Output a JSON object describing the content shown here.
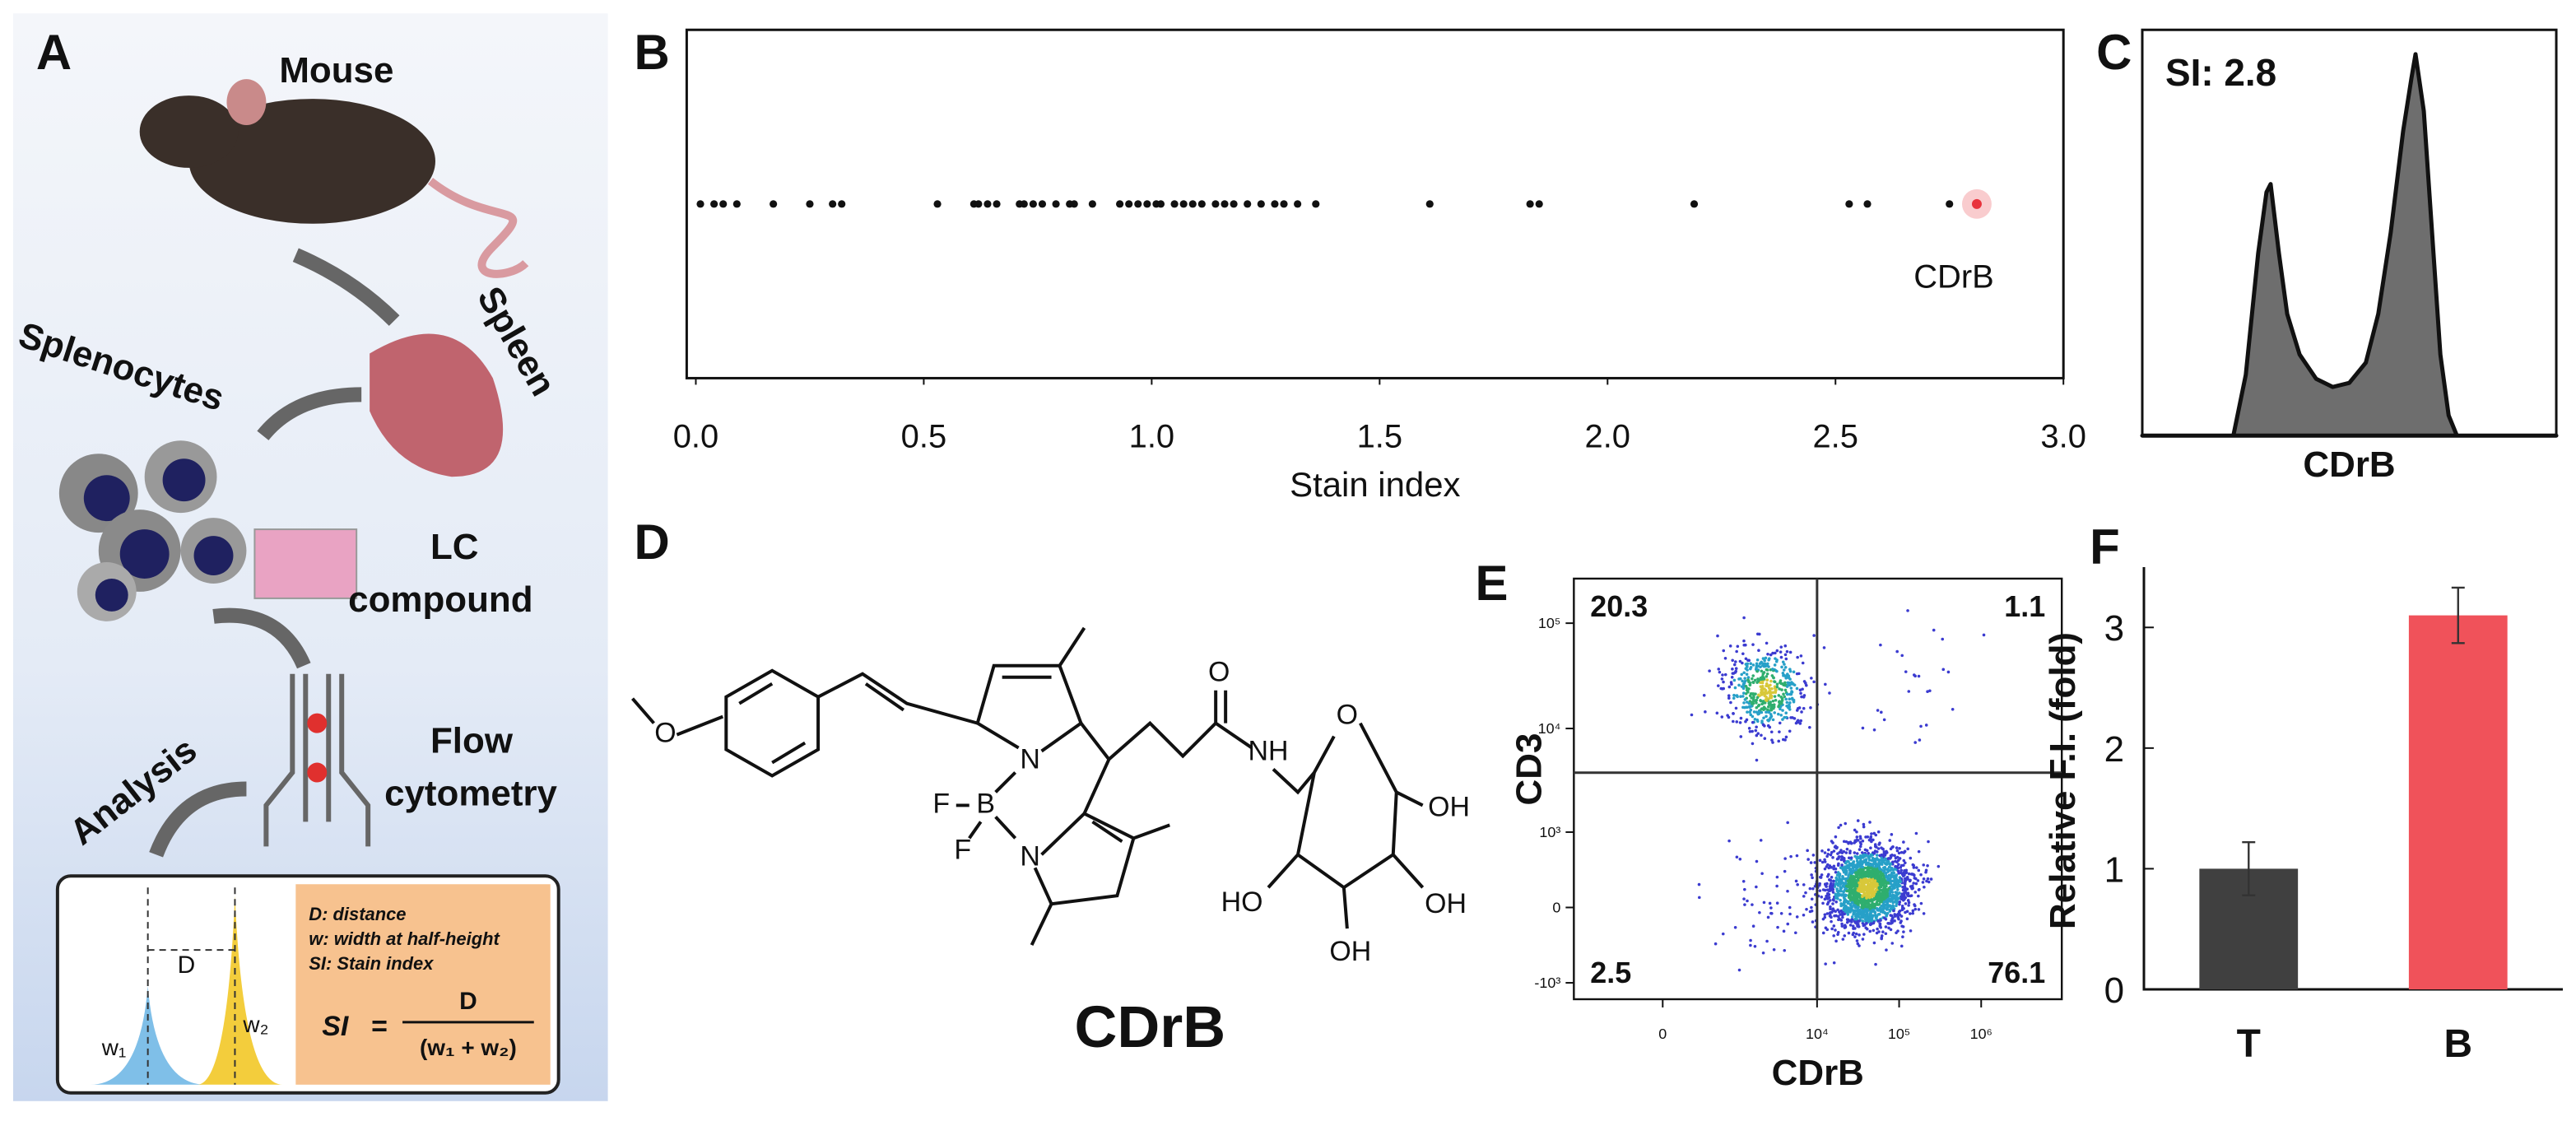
{
  "figure": {
    "panel_labels": [
      "A",
      "B",
      "C",
      "D",
      "E",
      "F"
    ]
  },
  "schematic": {
    "mouse": "Mouse",
    "spleen": "Spleen",
    "cells": "Splenocytes",
    "compound": [
      "LC",
      "compound"
    ],
    "flow": [
      "Flow",
      "cytometry"
    ],
    "analysis": "Analysis",
    "definitions": [
      "D: distance",
      "w: width at half-height",
      "SI: Stain index"
    ],
    "formula": {
      "lhs": "SI",
      "equals": "=",
      "numerator": "D",
      "denominator": "(w₁ + w₂)"
    },
    "peak_labels": [
      "D",
      "w₁",
      "w₂"
    ]
  },
  "structure": {
    "name": "CDrB",
    "atoms": [
      "O",
      "N",
      "B",
      "F",
      "F",
      "N",
      "O",
      "NH",
      "O",
      "OH",
      "HO",
      "OH",
      "OH"
    ]
  },
  "chart_data": [
    {
      "type": "strip",
      "xlabel": "Stain index",
      "color": "#111111",
      "x": [
        0.01,
        0.04,
        0.06,
        0.09,
        0.17,
        0.25,
        0.3,
        0.32,
        0.53,
        0.61,
        0.62,
        0.64,
        0.66,
        0.71,
        0.72,
        0.74,
        0.76,
        0.79,
        0.82,
        0.83,
        0.87,
        0.93,
        0.95,
        0.97,
        0.99,
        1.01,
        1.02,
        1.05,
        1.07,
        1.09,
        1.11,
        1.14,
        1.16,
        1.18,
        1.21,
        1.24,
        1.27,
        1.29,
        1.32,
        1.36,
        1.61,
        1.83,
        1.85,
        2.19,
        2.53,
        2.57,
        2.75
      ],
      "annotations": [
        {
          "text": "CDrB",
          "x": 2.81,
          "color": "#e8323c"
        }
      ],
      "xlim": [
        -0.02,
        3.0
      ],
      "xticks": [
        {
          "value": 0,
          "label": "0.0"
        },
        0.5,
        {
          "value": 1,
          "label": "1.0"
        },
        1.5,
        {
          "value": 2,
          "label": "2.0"
        },
        2.5,
        {
          "value": 3,
          "label": "3.0"
        }
      ]
    },
    {
      "type": "area",
      "annotation": "SI: 2.8",
      "xlabel": "CDrB",
      "color": "#6e6e6e",
      "x": [
        0,
        22,
        25,
        28,
        30,
        31,
        33,
        35,
        38,
        42,
        46,
        50,
        54,
        57,
        60,
        63,
        65,
        66,
        68,
        70,
        72,
        74,
        76,
        100
      ],
      "values": [
        0,
        0,
        15,
        45,
        60,
        62,
        45,
        30,
        20,
        14,
        12,
        13,
        18,
        30,
        50,
        75,
        88,
        94,
        80,
        50,
        20,
        5,
        0,
        0
      ],
      "xlim": [
        0,
        100
      ],
      "ylim": [
        0,
        100
      ]
    },
    {
      "type": "quadrant",
      "xlabel": "CDrB",
      "ylabel": "CD3",
      "scale": "biexponential",
      "xlim": [
        -1580,
        9600000
      ],
      "ylim": [
        -1460,
        265000
      ],
      "xticks": [
        0,
        {
          "value": 10000,
          "label": "10⁴"
        },
        {
          "value": 100000,
          "label": "10⁵"
        },
        {
          "value": 1000000,
          "label": "10⁶"
        }
      ],
      "yticks": [
        {
          "value": -1000,
          "label": "-10³"
        },
        0,
        {
          "value": 1000,
          "label": "10³"
        },
        {
          "value": 10000,
          "label": "10⁴"
        },
        {
          "value": 100000,
          "label": "10⁵"
        }
      ],
      "gates": {
        "x": 10000,
        "y": 3800
      },
      "quadrants": [
        {
          "value": 20.3,
          "x": 2380,
          "y": 23100
        },
        {
          "value": 1.1,
          "x": 120000,
          "y": 23100
        },
        {
          "value": 2.5,
          "x": 2500,
          "y": 100
        },
        {
          "value": 76.1,
          "x": 41600,
          "y": 177
        }
      ]
    },
    {
      "type": "bar",
      "ylabel": "Relative F.I. (fold)",
      "categories": [
        "T",
        "B"
      ],
      "values": [
        1.0,
        3.1
      ],
      "errors": [
        0.22,
        0.23
      ],
      "colors": [
        "#404040",
        "#f0525a"
      ],
      "ylim": [
        0,
        3.5
      ],
      "yticks": [
        0,
        1,
        2,
        3
      ]
    }
  ]
}
